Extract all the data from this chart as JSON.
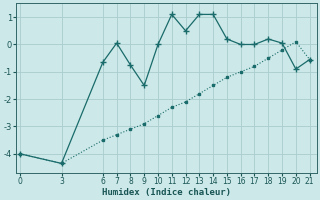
{
  "xlabel": "Humidex (Indice chaleur)",
  "bg_color": "#cce8e8",
  "grid_color": "#aacccc",
  "line_color": "#1a6b6b",
  "curve1_x": [
    0,
    3,
    6,
    7,
    8,
    9,
    10,
    11,
    12,
    13,
    14,
    15,
    16,
    17,
    18,
    19,
    20,
    21
  ],
  "curve1_y": [
    -4.0,
    -4.35,
    -0.65,
    0.05,
    -0.75,
    -1.5,
    0.0,
    1.1,
    0.5,
    1.1,
    1.1,
    0.2,
    0.0,
    0.0,
    0.2,
    0.05,
    -0.9,
    -0.55
  ],
  "curve2_x": [
    0,
    3,
    6,
    7,
    8,
    9,
    10,
    11,
    12,
    13,
    14,
    15,
    16,
    17,
    18,
    19,
    20,
    21
  ],
  "curve2_y": [
    -4.0,
    -4.35,
    -3.5,
    -3.3,
    -3.1,
    -2.9,
    -2.6,
    -2.3,
    -2.1,
    -1.8,
    -1.5,
    -1.2,
    -1.0,
    -0.8,
    -0.5,
    -0.2,
    0.1,
    -0.55
  ],
  "ylim": [
    -4.7,
    1.5
  ],
  "xlim": [
    -0.3,
    21.5
  ],
  "yticks": [
    -4,
    -3,
    -2,
    -1,
    0,
    1
  ],
  "xticks": [
    0,
    3,
    6,
    7,
    8,
    9,
    10,
    11,
    12,
    13,
    14,
    15,
    16,
    17,
    18,
    19,
    20,
    21
  ],
  "figsize": [
    3.2,
    2.0
  ],
  "dpi": 100
}
